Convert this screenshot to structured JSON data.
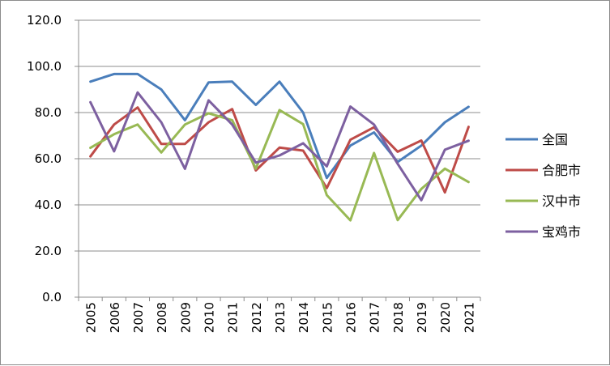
{
  "chart_data": {
    "type": "line",
    "title": "",
    "xlabel": "",
    "ylabel": "",
    "ylim": [
      0,
      120
    ],
    "y_ticks": [
      "0.0",
      "20.0",
      "40.0",
      "60.0",
      "80.0",
      "100.0",
      "120.0"
    ],
    "grid": "horizontal",
    "legend_position": "right",
    "categories": [
      "2005",
      "2006",
      "2007",
      "2008",
      "2009",
      "2010",
      "2011",
      "2012",
      "2013",
      "2014",
      "2015",
      "2016",
      "2017",
      "2018",
      "2019",
      "2020",
      "2021"
    ],
    "series": [
      {
        "name": "全国",
        "color": "#4a7ebb",
        "values": [
          93.4,
          96.7,
          96.7,
          90.0,
          76.7,
          93.1,
          93.4,
          83.3,
          93.4,
          80.0,
          51.7,
          65.7,
          71.4,
          58.6,
          65.7,
          75.8,
          82.5
        ]
      },
      {
        "name": "合肥市",
        "color": "#be4b48",
        "values": [
          61.0,
          74.8,
          82.2,
          66.4,
          66.4,
          75.8,
          81.5,
          54.9,
          64.8,
          63.5,
          47.3,
          68.2,
          73.6,
          63.0,
          67.9,
          45.4,
          73.8
        ]
      },
      {
        "name": "汉中市",
        "color": "#98b954",
        "values": [
          64.7,
          70.6,
          74.8,
          62.7,
          74.8,
          79.7,
          76.7,
          55.7,
          81.1,
          75.0,
          44.2,
          33.3,
          62.5,
          33.4,
          46.9,
          55.7,
          49.9
        ]
      },
      {
        "name": "宝鸡市",
        "color": "#7d60a0",
        "values": [
          84.5,
          63.2,
          88.7,
          75.8,
          55.6,
          85.3,
          74.8,
          58.3,
          61.4,
          66.7,
          56.7,
          82.6,
          74.8,
          57.8,
          42.0,
          63.9,
          67.8
        ]
      }
    ]
  }
}
